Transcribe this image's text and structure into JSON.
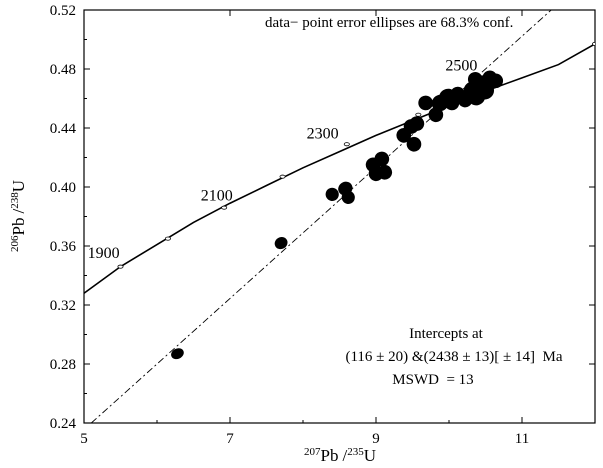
{
  "chart_data": {
    "type": "scatter",
    "subtype": "concordia-diagram",
    "title": "",
    "xlabel": {
      "sup1": "207",
      "base1": "Pb",
      "sep": "/",
      "sup2": "235",
      "base2": "U"
    },
    "ylabel": {
      "sup1": "206",
      "base1": "Pb",
      "sep": "/",
      "sup2": "238",
      "base2": "U"
    },
    "xlim": [
      5,
      12
    ],
    "ylim": [
      0.24,
      0.52
    ],
    "x_ticks": [
      5,
      7,
      9,
      11
    ],
    "x_tick_labels": [
      "5",
      "7",
      "9",
      "11"
    ],
    "y_ticks": [
      0.24,
      0.28,
      0.32,
      0.36,
      0.4,
      0.44,
      0.48,
      0.52
    ],
    "y_tick_labels": [
      "0.24",
      "0.28",
      "0.32",
      "0.36",
      "0.40",
      "0.44",
      "0.48",
      "0.52"
    ],
    "grid": false,
    "concordia": {
      "points": [
        {
          "x": 5.0,
          "y": 0.328
        },
        {
          "x": 5.5,
          "y": 0.346
        },
        {
          "x": 6.0,
          "y": 0.361
        },
        {
          "x": 6.5,
          "y": 0.376
        },
        {
          "x": 7.0,
          "y": 0.389
        },
        {
          "x": 7.5,
          "y": 0.401
        },
        {
          "x": 8.0,
          "y": 0.413
        },
        {
          "x": 8.5,
          "y": 0.424
        },
        {
          "x": 9.0,
          "y": 0.435
        },
        {
          "x": 9.5,
          "y": 0.445
        },
        {
          "x": 10.0,
          "y": 0.455
        },
        {
          "x": 10.5,
          "y": 0.465
        },
        {
          "x": 11.0,
          "y": 0.474
        },
        {
          "x": 11.5,
          "y": 0.483
        },
        {
          "x": 12.0,
          "y": 0.497
        }
      ],
      "age_ticks": [
        {
          "x": 5.5,
          "y": 0.346
        },
        {
          "x": 6.15,
          "y": 0.365
        },
        {
          "x": 6.92,
          "y": 0.386
        },
        {
          "x": 7.72,
          "y": 0.407
        },
        {
          "x": 8.6,
          "y": 0.429
        },
        {
          "x": 9.58,
          "y": 0.449
        },
        {
          "x": 10.65,
          "y": 0.469
        },
        {
          "x": 12.0,
          "y": 0.497
        }
      ],
      "age_labels": [
        {
          "text": "1900",
          "x": 5.05,
          "y": 0.352
        },
        {
          "text": "2100",
          "x": 6.6,
          "y": 0.391
        },
        {
          "text": "2300",
          "x": 8.05,
          "y": 0.433
        },
        {
          "text": "2500",
          "x": 9.95,
          "y": 0.479
        }
      ]
    },
    "discordia": {
      "start": {
        "x": 5.1,
        "y": 0.24
      },
      "end": {
        "x": 11.4,
        "y": 0.52
      }
    },
    "ellipses": [
      {
        "x": 6.28,
        "y": 0.287,
        "rx": 0.09,
        "ry": 0.0035,
        "angle": -25
      },
      {
        "x": 7.7,
        "y": 0.362,
        "rx": 0.09,
        "ry": 0.004,
        "angle": -30
      },
      {
        "x": 8.4,
        "y": 0.395,
        "rx": 0.09,
        "ry": 0.0045,
        "angle": -30
      },
      {
        "x": 8.58,
        "y": 0.399,
        "rx": 0.1,
        "ry": 0.0045,
        "angle": -30
      },
      {
        "x": 8.62,
        "y": 0.393,
        "rx": 0.09,
        "ry": 0.0045,
        "angle": -30
      },
      {
        "x": 8.96,
        "y": 0.415,
        "rx": 0.1,
        "ry": 0.005,
        "angle": -35
      },
      {
        "x": 9.08,
        "y": 0.419,
        "rx": 0.1,
        "ry": 0.005,
        "angle": -35
      },
      {
        "x": 9.0,
        "y": 0.409,
        "rx": 0.1,
        "ry": 0.005,
        "angle": -35
      },
      {
        "x": 9.12,
        "y": 0.41,
        "rx": 0.1,
        "ry": 0.005,
        "angle": -35
      },
      {
        "x": 9.38,
        "y": 0.435,
        "rx": 0.1,
        "ry": 0.005,
        "angle": -35
      },
      {
        "x": 9.48,
        "y": 0.441,
        "rx": 0.1,
        "ry": 0.005,
        "angle": -35
      },
      {
        "x": 9.56,
        "y": 0.443,
        "rx": 0.1,
        "ry": 0.005,
        "angle": -35
      },
      {
        "x": 9.52,
        "y": 0.429,
        "rx": 0.1,
        "ry": 0.005,
        "angle": -35
      },
      {
        "x": 9.68,
        "y": 0.457,
        "rx": 0.1,
        "ry": 0.005,
        "angle": -35
      },
      {
        "x": 9.82,
        "y": 0.449,
        "rx": 0.1,
        "ry": 0.005,
        "angle": -35
      },
      {
        "x": 9.88,
        "y": 0.457,
        "rx": 0.12,
        "ry": 0.0055,
        "angle": -35
      },
      {
        "x": 9.98,
        "y": 0.461,
        "rx": 0.12,
        "ry": 0.0055,
        "angle": -35
      },
      {
        "x": 10.04,
        "y": 0.457,
        "rx": 0.1,
        "ry": 0.005,
        "angle": -35
      },
      {
        "x": 10.12,
        "y": 0.463,
        "rx": 0.1,
        "ry": 0.005,
        "angle": -35
      },
      {
        "x": 10.22,
        "y": 0.459,
        "rx": 0.1,
        "ry": 0.005,
        "angle": -35
      },
      {
        "x": 10.32,
        "y": 0.466,
        "rx": 0.12,
        "ry": 0.0055,
        "angle": -35
      },
      {
        "x": 10.38,
        "y": 0.461,
        "rx": 0.12,
        "ry": 0.0055,
        "angle": -35
      },
      {
        "x": 10.45,
        "y": 0.47,
        "rx": 0.12,
        "ry": 0.0055,
        "angle": -35
      },
      {
        "x": 10.5,
        "y": 0.465,
        "rx": 0.12,
        "ry": 0.0055,
        "angle": -35
      },
      {
        "x": 10.56,
        "y": 0.474,
        "rx": 0.1,
        "ry": 0.005,
        "angle": -35
      },
      {
        "x": 10.64,
        "y": 0.472,
        "rx": 0.1,
        "ry": 0.005,
        "angle": -35
      },
      {
        "x": 10.36,
        "y": 0.473,
        "rx": 0.1,
        "ry": 0.005,
        "angle": -35
      }
    ],
    "annotations": {
      "top_note": "data− point error ellipses are 68.3% conf.",
      "intercepts_title": "Intercepts at",
      "intercepts_values": "(116 ± 20) &(2438 ± 13)[ ± 14]  Ma",
      "mswd": "MSWD  = 13"
    },
    "colors": {
      "ellipse_fill": "#000000",
      "curve": "#000000",
      "background": "#ffffff"
    }
  }
}
